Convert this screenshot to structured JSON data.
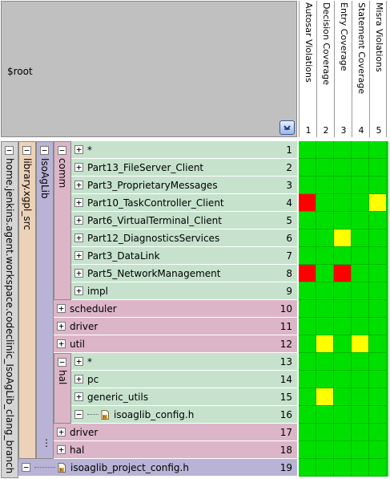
{
  "root": {
    "label": "$root"
  },
  "metrics": [
    {
      "label": "Autosar Violations",
      "num": "1"
    },
    {
      "label": "Decision Coverage",
      "num": "2"
    },
    {
      "label": "Entry Coverage",
      "num": "3"
    },
    {
      "label": "Statement Coverage",
      "num": "4"
    },
    {
      "label": "Misra Violations",
      "num": "5"
    }
  ],
  "columns": {
    "path": "home.jenkins.agent.workspace.codeclinic_IsoAgLib_clang_branch",
    "library": "library.xgpl_src",
    "isoaglib": "IsoAgLib",
    "comm": "comm",
    "hal": "hal"
  },
  "rows": [
    {
      "label": "*",
      "num": "1"
    },
    {
      "label": "Part13_FileServer_Client",
      "num": "2"
    },
    {
      "label": "Part3_ProprietaryMessages",
      "num": "3"
    },
    {
      "label": "Part10_TaskController_Client",
      "num": "4"
    },
    {
      "label": "Part6_VirtualTerminal_Client",
      "num": "5"
    },
    {
      "label": "Part12_DiagnosticsServices",
      "num": "6"
    },
    {
      "label": "Part3_DataLink",
      "num": "7"
    },
    {
      "label": "Part5_NetworkManagement",
      "num": "8"
    },
    {
      "label": "impl",
      "num": "9"
    },
    {
      "label": "scheduler",
      "num": "10"
    },
    {
      "label": "driver",
      "num": "11"
    },
    {
      "label": "util",
      "num": "12"
    },
    {
      "label": "*",
      "num": "13"
    },
    {
      "label": "pc",
      "num": "14"
    },
    {
      "label": "generic_utils",
      "num": "15"
    },
    {
      "label": "isoaglib_config.h",
      "num": "16"
    },
    {
      "label": "driver",
      "num": "17"
    },
    {
      "label": "hal",
      "num": "18"
    },
    {
      "label": "isoaglib_project_config.h",
      "num": "19"
    }
  ],
  "toggles": {
    "plus": "+",
    "minus": "−",
    "dots": "⋮"
  },
  "colors": {
    "green": "#00e000",
    "red": "#ff0000",
    "yellow": "#ffff00"
  },
  "status_grid": [
    [
      "g",
      "g",
      "g",
      "g",
      "g"
    ],
    [
      "g",
      "g",
      "g",
      "g",
      "g"
    ],
    [
      "g",
      "g",
      "g",
      "g",
      "g"
    ],
    [
      "r",
      "g",
      "g",
      "g",
      "y"
    ],
    [
      "g",
      "g",
      "g",
      "g",
      "g"
    ],
    [
      "g",
      "g",
      "y",
      "g",
      "g"
    ],
    [
      "g",
      "g",
      "g",
      "g",
      "g"
    ],
    [
      "r",
      "g",
      "r",
      "g",
      "g"
    ],
    [
      "g",
      "g",
      "g",
      "g",
      "g"
    ],
    [
      "g",
      "g",
      "g",
      "g",
      "g"
    ],
    [
      "g",
      "g",
      "g",
      "g",
      "g"
    ],
    [
      "g",
      "y",
      "g",
      "y",
      "g"
    ],
    [
      "g",
      "g",
      "g",
      "g",
      "g"
    ],
    [
      "g",
      "g",
      "g",
      "g",
      "g"
    ],
    [
      "g",
      "y",
      "g",
      "g",
      "g"
    ],
    [
      "g",
      "g",
      "g",
      "g",
      "g"
    ],
    [
      "g",
      "g",
      "g",
      "g",
      "g"
    ],
    [
      "g",
      "g",
      "g",
      "g",
      "g"
    ],
    [
      "g",
      "g",
      "g",
      "g",
      "g"
    ]
  ]
}
